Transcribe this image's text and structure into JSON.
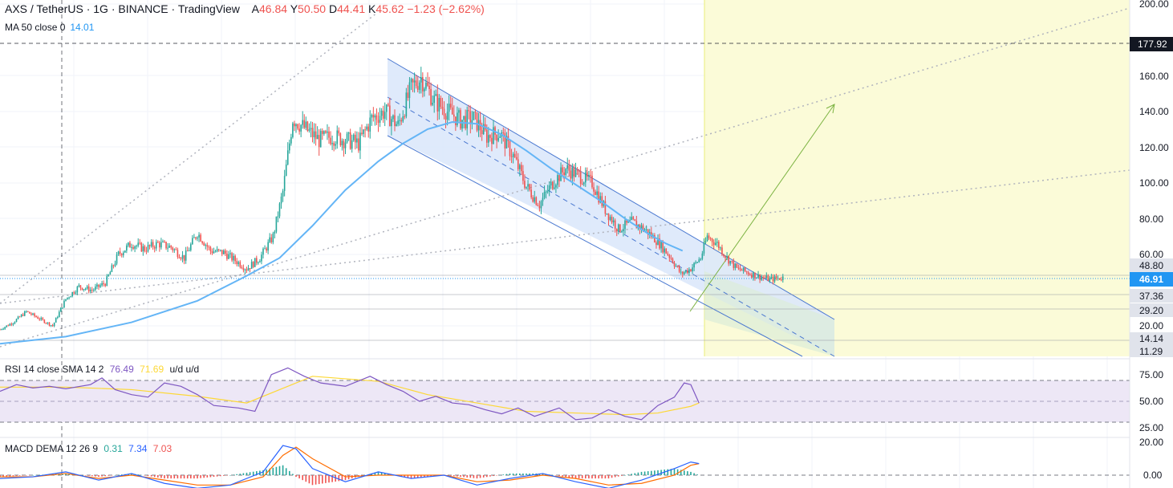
{
  "header": {
    "symbol": "AXS / TetherUS",
    "interval": "1G",
    "exchange": "BINANCE",
    "source": "TradingView",
    "open_label": "A",
    "open": "46.84",
    "high_label": "Y",
    "high": "50.50",
    "low_label": "D",
    "low": "44.41",
    "close_label": "K",
    "close": "45.62",
    "change": "−1.23 (−2.62%)"
  },
  "ma_indicator": {
    "label": "MA 50 close 0",
    "value": "14.01"
  },
  "rsi_indicator": {
    "label": "RSI 14 close SMA 14 2",
    "rsi": "76.49",
    "sma": "71.69",
    "extra": "u/d u/d"
  },
  "macd_indicator": {
    "label": "MACD DEMA 12 26 9",
    "hist": "0.31",
    "macd": "7.34",
    "signal": "7.03"
  },
  "colors": {
    "up": "#26a69a",
    "down": "#ef5350",
    "ma": "#64b5f6",
    "channel_fill": "#dbe8fb",
    "zone_fill": "#fbfbd8",
    "rsi_band": "#ede7f6",
    "rsi_line": "#7e57c2",
    "rsi_sma": "#fdd835",
    "macd": "#2962ff",
    "signal": "#ff6d00",
    "tag_dark": "#131722",
    "tag_blue": "#2196f3",
    "tag_gray": "#e0e3eb"
  },
  "price_axis": {
    "ticks": [
      "200.00",
      "160.00",
      "140.00",
      "120.00",
      "100.00",
      "80.00",
      "60.00",
      "20.00"
    ]
  },
  "price_tags": {
    "crosshair": "177.92",
    "last": "46.91",
    "level_a": "48.80",
    "level_b": "37.36",
    "level_c": "29.20",
    "level_d": "14.14",
    "level_e": "11.29"
  },
  "rsi_axis": {
    "ticks": [
      "75.00",
      "50.00",
      "25.00"
    ]
  },
  "macd_axis": {
    "ticks": [
      "20.00",
      "0.00"
    ]
  },
  "chart_data": {
    "type": "candlestick",
    "title": "AXS / TetherUS · 1G · BINANCE",
    "ylim": [
      8,
      205
    ],
    "price_anchors": [
      [
        0,
        18
      ],
      [
        8,
        22
      ],
      [
        16,
        28
      ],
      [
        24,
        24
      ],
      [
        32,
        20
      ],
      [
        40,
        35
      ],
      [
        48,
        42
      ],
      [
        56,
        40
      ],
      [
        64,
        44
      ],
      [
        72,
        60
      ],
      [
        80,
        66
      ],
      [
        88,
        63
      ],
      [
        96,
        66
      ],
      [
        104,
        64
      ],
      [
        112,
        58
      ],
      [
        120,
        72
      ],
      [
        128,
        62
      ],
      [
        136,
        61
      ],
      [
        144,
        56
      ],
      [
        150,
        52
      ],
      [
        158,
        58
      ],
      [
        166,
        70
      ],
      [
        172,
        95
      ],
      [
        178,
        136
      ],
      [
        186,
        130
      ],
      [
        194,
        124
      ],
      [
        202,
        126
      ],
      [
        210,
        124
      ],
      [
        218,
        122
      ],
      [
        226,
        136
      ],
      [
        234,
        140
      ],
      [
        242,
        132
      ],
      [
        250,
        153
      ],
      [
        256,
        159
      ],
      [
        264,
        146
      ],
      [
        272,
        140
      ],
      [
        280,
        135
      ],
      [
        288,
        136
      ],
      [
        296,
        126
      ],
      [
        304,
        128
      ],
      [
        312,
        115
      ],
      [
        320,
        98
      ],
      [
        328,
        88
      ],
      [
        336,
        100
      ],
      [
        344,
        108
      ],
      [
        352,
        104
      ],
      [
        360,
        100
      ],
      [
        368,
        85
      ],
      [
        376,
        74
      ],
      [
        384,
        78
      ],
      [
        392,
        74
      ],
      [
        400,
        67
      ],
      [
        408,
        58
      ],
      [
        414,
        49
      ],
      [
        420,
        52
      ],
      [
        426,
        58
      ],
      [
        430,
        70
      ],
      [
        436,
        66
      ],
      [
        442,
        58
      ],
      [
        448,
        52
      ],
      [
        454,
        50
      ],
      [
        460,
        48
      ],
      [
        468,
        46
      ],
      [
        476,
        47
      ]
    ],
    "ma50": [
      [
        0,
        10
      ],
      [
        40,
        14
      ],
      [
        80,
        22
      ],
      [
        120,
        34
      ],
      [
        150,
        48
      ],
      [
        170,
        58
      ],
      [
        190,
        76
      ],
      [
        210,
        96
      ],
      [
        230,
        112
      ],
      [
        245,
        122
      ],
      [
        260,
        130
      ],
      [
        275,
        134
      ],
      [
        290,
        133
      ],
      [
        305,
        127
      ],
      [
        320,
        118
      ],
      [
        335,
        108
      ],
      [
        350,
        99
      ],
      [
        365,
        90
      ],
      [
        380,
        80
      ],
      [
        395,
        71
      ],
      [
        405,
        66
      ],
      [
        415,
        62
      ]
    ],
    "rsi": [
      [
        0,
        62
      ],
      [
        10,
        70
      ],
      [
        20,
        66
      ],
      [
        30,
        68
      ],
      [
        40,
        65
      ],
      [
        55,
        70
      ],
      [
        62,
        78
      ],
      [
        70,
        64
      ],
      [
        80,
        58
      ],
      [
        90,
        55
      ],
      [
        100,
        72
      ],
      [
        110,
        68
      ],
      [
        120,
        58
      ],
      [
        130,
        45
      ],
      [
        145,
        42
      ],
      [
        155,
        38
      ],
      [
        165,
        82
      ],
      [
        175,
        90
      ],
      [
        185,
        80
      ],
      [
        195,
        72
      ],
      [
        210,
        68
      ],
      [
        225,
        80
      ],
      [
        235,
        70
      ],
      [
        245,
        62
      ],
      [
        255,
        50
      ],
      [
        265,
        56
      ],
      [
        275,
        48
      ],
      [
        285,
        46
      ],
      [
        295,
        40
      ],
      [
        305,
        35
      ],
      [
        315,
        42
      ],
      [
        325,
        32
      ],
      [
        340,
        42
      ],
      [
        350,
        28
      ],
      [
        360,
        30
      ],
      [
        370,
        40
      ],
      [
        380,
        32
      ],
      [
        390,
        28
      ],
      [
        400,
        45
      ],
      [
        410,
        55
      ],
      [
        416,
        72
      ],
      [
        420,
        70
      ],
      [
        425,
        48
      ]
    ],
    "rsi_sma": [
      [
        0,
        67
      ],
      [
        40,
        67
      ],
      [
        80,
        64
      ],
      [
        120,
        56
      ],
      [
        150,
        48
      ],
      [
        170,
        64
      ],
      [
        190,
        80
      ],
      [
        230,
        74
      ],
      [
        260,
        58
      ],
      [
        290,
        48
      ],
      [
        320,
        38
      ],
      [
        350,
        36
      ],
      [
        380,
        34
      ],
      [
        400,
        36
      ],
      [
        420,
        44
      ],
      [
        425,
        48
      ]
    ],
    "macd": [
      [
        0,
        -2
      ],
      [
        20,
        -1
      ],
      [
        40,
        2
      ],
      [
        60,
        -3
      ],
      [
        80,
        1
      ],
      [
        100,
        -5
      ],
      [
        120,
        -8
      ],
      [
        140,
        -6
      ],
      [
        160,
        2
      ],
      [
        172,
        18
      ],
      [
        180,
        16
      ],
      [
        190,
        4
      ],
      [
        210,
        -4
      ],
      [
        230,
        2
      ],
      [
        250,
        -2
      ],
      [
        270,
        0
      ],
      [
        290,
        -6
      ],
      [
        310,
        -2
      ],
      [
        330,
        1
      ],
      [
        350,
        -4
      ],
      [
        370,
        -8
      ],
      [
        390,
        -3
      ],
      [
        410,
        4
      ],
      [
        420,
        8
      ],
      [
        425,
        7
      ]
    ],
    "signal": [
      [
        0,
        -1
      ],
      [
        20,
        -1
      ],
      [
        40,
        1
      ],
      [
        60,
        -2
      ],
      [
        80,
        0
      ],
      [
        100,
        -3
      ],
      [
        120,
        -6
      ],
      [
        140,
        -6
      ],
      [
        160,
        -1
      ],
      [
        172,
        12
      ],
      [
        180,
        17
      ],
      [
        190,
        10
      ],
      [
        210,
        -1
      ],
      [
        230,
        0
      ],
      [
        250,
        0
      ],
      [
        270,
        0
      ],
      [
        290,
        -4
      ],
      [
        310,
        -3
      ],
      [
        330,
        0
      ],
      [
        350,
        -2
      ],
      [
        370,
        -6
      ],
      [
        390,
        -5
      ],
      [
        410,
        0
      ],
      [
        420,
        6
      ],
      [
        425,
        7
      ]
    ]
  }
}
